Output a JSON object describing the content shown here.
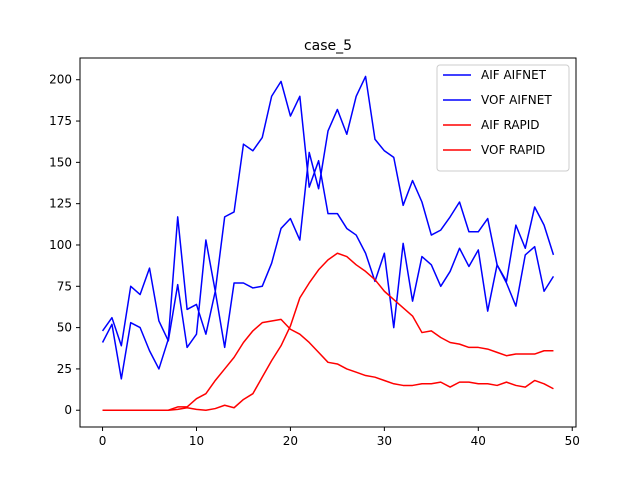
{
  "chart_data": {
    "type": "line",
    "title": "case_5",
    "xlabel": "",
    "ylabel": "",
    "xlim": [
      -2.4,
      50.4
    ],
    "ylim": [
      -10.15,
      213.15
    ],
    "xticks": [
      0,
      10,
      20,
      30,
      40,
      50
    ],
    "yticks": [
      0,
      25,
      50,
      75,
      100,
      125,
      150,
      175,
      200
    ],
    "grid": false,
    "legend_position": "top-right",
    "x": [
      0,
      1,
      2,
      3,
      4,
      5,
      6,
      7,
      8,
      9,
      10,
      11,
      12,
      13,
      14,
      15,
      16,
      17,
      18,
      19,
      20,
      21,
      22,
      23,
      24,
      25,
      26,
      27,
      28,
      29,
      30,
      31,
      32,
      33,
      34,
      35,
      36,
      37,
      38,
      39,
      40,
      41,
      42,
      43,
      44,
      45,
      46,
      47,
      48
    ],
    "series": [
      {
        "name": "AIF AIFNET",
        "color": "#0000ff",
        "values": [
          41,
          52,
          19,
          53,
          50,
          36,
          25,
          43,
          117,
          61,
          64,
          46,
          72,
          117,
          120,
          161,
          157,
          165,
          190,
          199,
          178,
          190,
          135,
          151,
          119,
          119,
          110,
          106,
          95,
          78,
          95,
          50,
          101,
          66,
          93,
          88,
          75,
          84,
          98,
          87,
          97,
          60,
          88,
          77,
          63,
          94,
          99,
          72,
          81
        ]
      },
      {
        "name": "VOF AIFNET",
        "color": "#0000ff",
        "values": [
          48,
          56,
          39,
          75,
          70,
          86,
          54,
          42,
          76,
          38,
          46,
          103,
          72,
          38,
          77,
          77,
          74,
          75,
          89,
          110,
          116,
          103,
          156,
          134,
          169,
          182,
          167,
          190,
          202,
          164,
          157,
          153,
          124,
          139,
          126,
          106,
          109,
          117,
          126,
          108,
          108,
          116,
          88,
          78,
          112,
          98,
          123,
          112,
          94
        ]
      },
      {
        "name": "AIF RAPID",
        "color": "#ff0000",
        "values": [
          0,
          0,
          0,
          0,
          0,
          0,
          0,
          0,
          2,
          2,
          7,
          10,
          18,
          25,
          32,
          41,
          48,
          53,
          54,
          55,
          49,
          46,
          41,
          35,
          29,
          28,
          25,
          23,
          21,
          20,
          18,
          16,
          15,
          15,
          16,
          16,
          17,
          14,
          17,
          17,
          16,
          16,
          15,
          17,
          15,
          14,
          18,
          16,
          13
        ]
      },
      {
        "name": "VOF RAPID",
        "color": "#ff0000",
        "values": [
          0,
          0,
          0,
          0,
          0,
          0,
          0,
          0,
          0.5,
          1.5,
          0.5,
          0,
          1,
          3,
          1.5,
          6.5,
          10,
          20,
          30,
          39,
          51,
          68,
          77,
          85,
          91,
          95,
          93,
          88,
          84,
          79,
          72,
          67,
          62,
          57,
          47,
          48,
          44,
          41,
          40,
          38,
          38,
          37,
          35,
          33,
          34,
          34,
          34,
          36,
          36
        ]
      }
    ]
  }
}
